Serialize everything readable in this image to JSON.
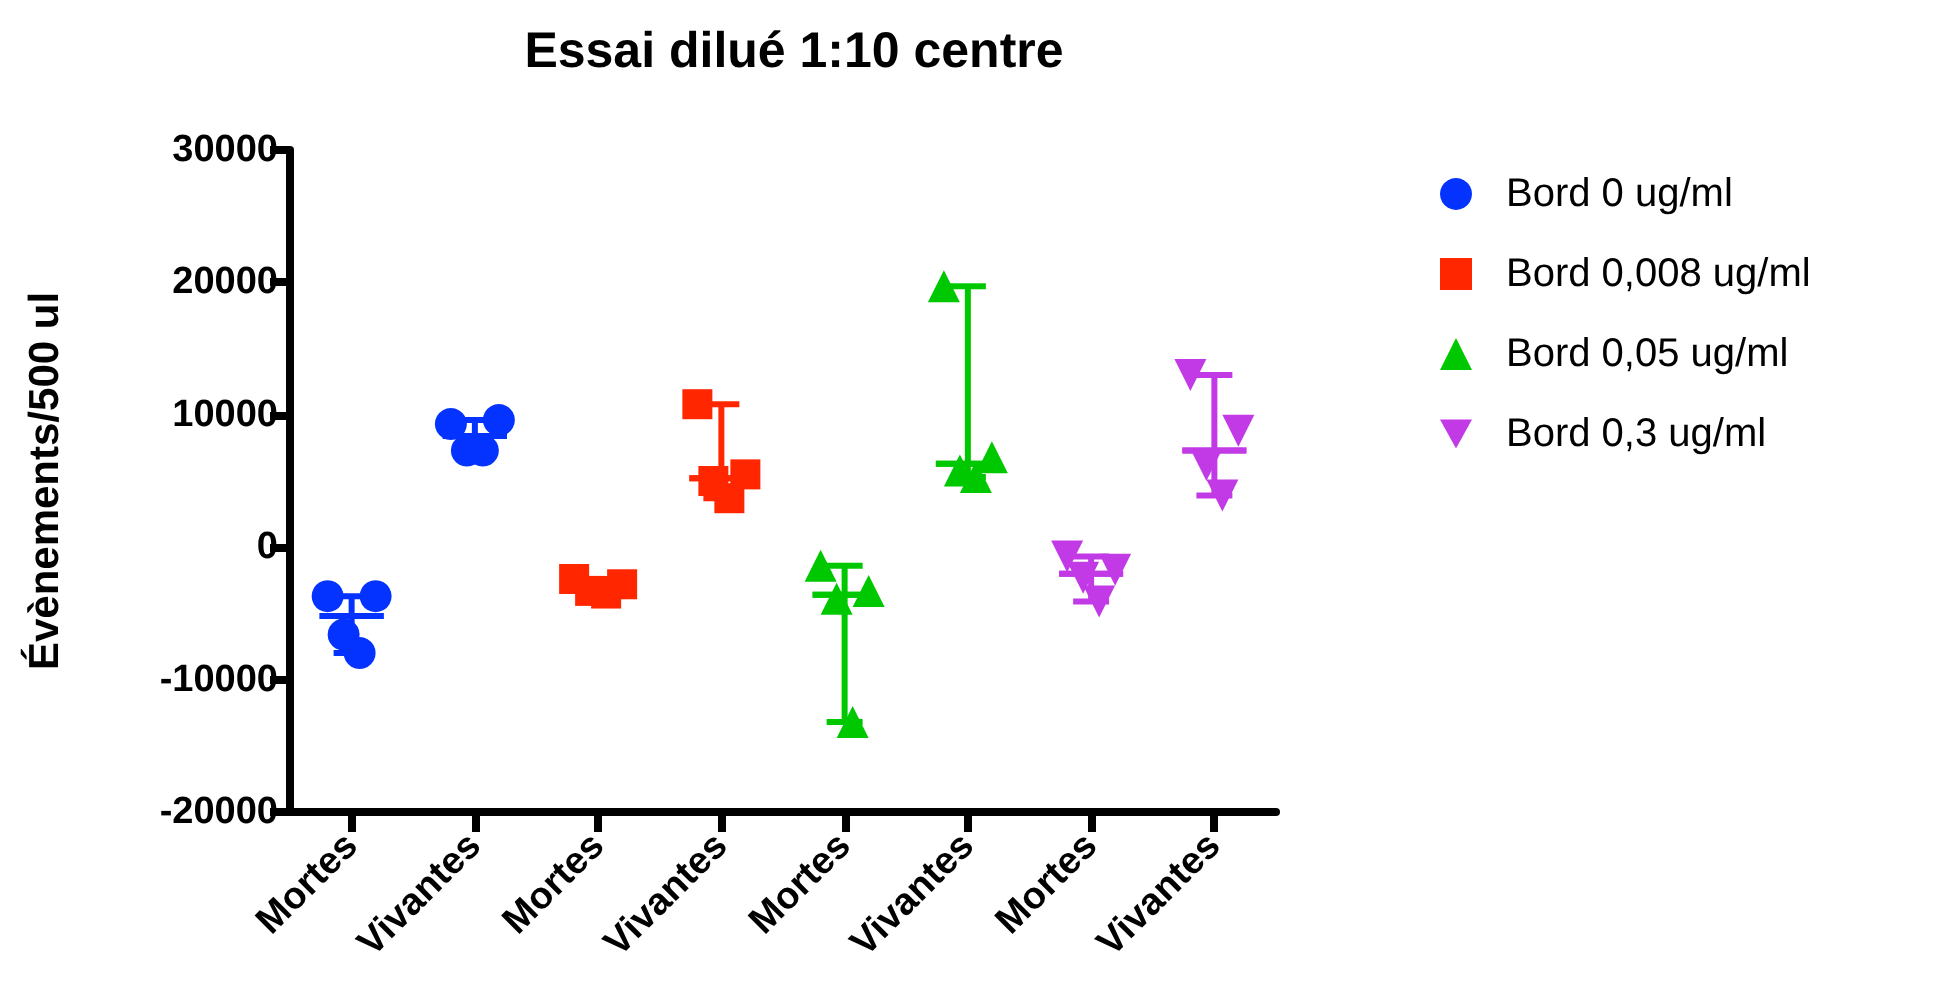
{
  "chart_data": {
    "type": "scatter",
    "title": "Essai dilué 1:10 centre",
    "ylabel": "Évènements/500 ul",
    "categories": [
      "Mortes",
      "Vivantes",
      "Mortes",
      "Vivantes",
      "Mortes",
      "Vivantes",
      "Mortes",
      "Vivantes"
    ],
    "ylim": [
      -20000,
      30000
    ],
    "yticks": [
      -20000,
      -10000,
      0,
      10000,
      20000,
      30000
    ],
    "grid": false,
    "legend": "right",
    "series": [
      {
        "name": "Bord 0 ug/ml",
        "color": "#0433ff",
        "marker": "circle",
        "values": [
          -3700,
          9300,
          null,
          null,
          null,
          null,
          null,
          null
        ]
      },
      {
        "color": "#0433ff",
        "marker": "circle",
        "values": [
          -3700,
          9600,
          null,
          null,
          null,
          null,
          null,
          null
        ]
      },
      {
        "color": "#0433ff",
        "marker": "circle",
        "values": [
          -6600,
          7300,
          null,
          null,
          null,
          null,
          null,
          null
        ]
      },
      {
        "color": "#0433ff",
        "marker": "circle",
        "values": [
          -8000,
          7300,
          null,
          null,
          null,
          null,
          null,
          null
        ]
      },
      {
        "type": "box",
        "color": "#0433ff",
        "boxes": [
          {
            "low": -8000,
            "q1": -5200,
            "median": -5200,
            "q3": -5200,
            "high": -3700
          },
          {
            "low": 7300,
            "q1": 8400,
            "median": 8400,
            "q3": 8400,
            "high": 9600
          },
          null,
          null,
          null,
          null,
          null,
          null
        ]
      },
      {
        "name": "Bord 0,008 ug/ml",
        "color": "#ff2600",
        "marker": "square",
        "values": [
          null,
          null,
          -2400,
          10800,
          null,
          null,
          null,
          null
        ]
      },
      {
        "color": "#ff2600",
        "marker": "square",
        "values": [
          null,
          null,
          -2800,
          5500,
          null,
          null,
          null,
          null
        ]
      },
      {
        "color": "#ff2600",
        "marker": "square",
        "values": [
          null,
          null,
          -3300,
          5000,
          null,
          null,
          null,
          null
        ]
      },
      {
        "color": "#ff2600",
        "marker": "square",
        "values": [
          null,
          null,
          -3500,
          3700,
          null,
          null,
          null,
          null
        ]
      },
      {
        "type": "box",
        "color": "#ff2600",
        "boxes": [
          null,
          null,
          {
            "low": -3500,
            "q1": -3000,
            "median": -3000,
            "q3": -3000,
            "high": -2400
          },
          {
            "low": 3700,
            "q1": 5200,
            "median": 5200,
            "q3": 5200,
            "high": 10800
          },
          null,
          null,
          null,
          null
        ]
      },
      {
        "name": "Bord 0,05 ug/ml",
        "color": "#00c800",
        "marker": "triangle",
        "values": [
          null,
          null,
          null,
          null,
          -1400,
          19700,
          null,
          null
        ]
      },
      {
        "color": "#00c800",
        "marker": "triangle",
        "values": [
          null,
          null,
          null,
          null,
          -3300,
          6800,
          null,
          null
        ]
      },
      {
        "color": "#00c800",
        "marker": "triangle",
        "values": [
          null,
          null,
          null,
          null,
          -3900,
          5800,
          null,
          null
        ]
      },
      {
        "color": "#00c800",
        "marker": "triangle",
        "values": [
          null,
          null,
          null,
          null,
          -13200,
          5300,
          null,
          null
        ]
      },
      {
        "type": "box",
        "color": "#00c800",
        "boxes": [
          null,
          null,
          null,
          null,
          {
            "low": -13200,
            "q1": -3600,
            "median": -3600,
            "q3": -3600,
            "high": -1400
          },
          {
            "low": 5300,
            "q1": 6300,
            "median": 6300,
            "q3": 6300,
            "high": 19700
          },
          null,
          null
        ]
      },
      {
        "name": "Bord 0,3 ug/ml",
        "color": "#c23ae6",
        "marker": "triangle-down",
        "values": [
          null,
          null,
          null,
          null,
          null,
          null,
          -700,
          13000
        ]
      },
      {
        "color": "#c23ae6",
        "marker": "triangle-down",
        "values": [
          null,
          null,
          null,
          null,
          null,
          null,
          -1700,
          8800
        ]
      },
      {
        "color": "#c23ae6",
        "marker": "triangle-down",
        "values": [
          null,
          null,
          null,
          null,
          null,
          null,
          -2300,
          6200
        ]
      },
      {
        "color": "#c23ae6",
        "marker": "triangle-down",
        "values": [
          null,
          null,
          null,
          null,
          null,
          null,
          -4100,
          3900
        ]
      },
      {
        "type": "box",
        "color": "#c23ae6",
        "boxes": [
          null,
          null,
          null,
          null,
          null,
          null,
          {
            "low": -4100,
            "q1": -2000,
            "median": -2000,
            "q3": -2000,
            "high": -700
          },
          {
            "low": 3900,
            "q1": 7300,
            "median": 7300,
            "q3": 7300,
            "high": 13000
          }
        ]
      }
    ]
  }
}
